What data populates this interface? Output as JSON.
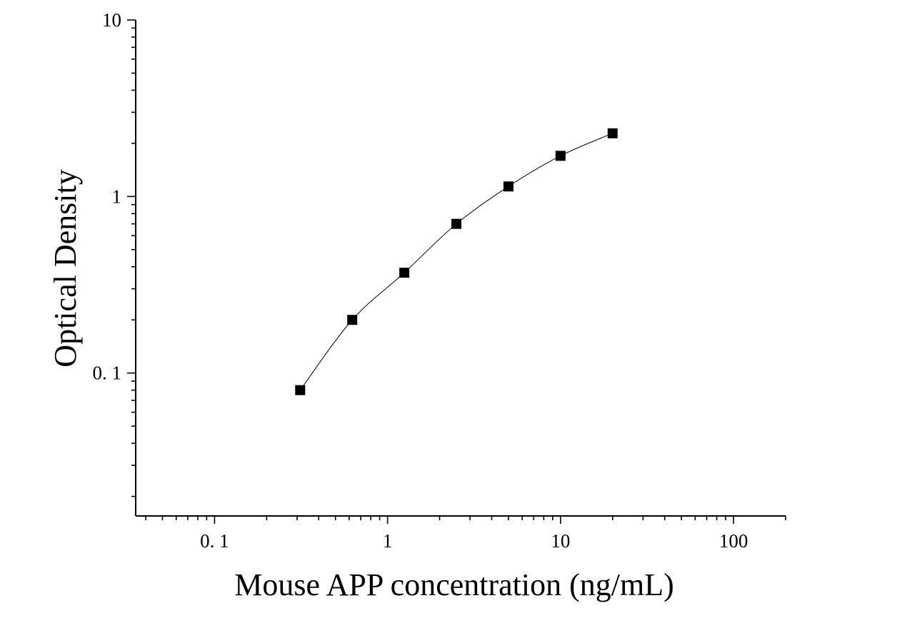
{
  "chart_data": {
    "type": "scatter",
    "xlabel": "Mouse APP concentration (ng/mL)",
    "ylabel": "Optical Density",
    "x_scale": "log",
    "y_scale": "log",
    "xlim": [
      0.035,
      200
    ],
    "ylim": [
      0.0155,
      10
    ],
    "x_ticks": [
      {
        "value": 0.1,
        "label": "0. 1"
      },
      {
        "value": 1,
        "label": "1"
      },
      {
        "value": 10,
        "label": "10"
      },
      {
        "value": 100,
        "label": "100"
      }
    ],
    "y_ticks": [
      {
        "value": 0.1,
        "label": "0. 1"
      },
      {
        "value": 1,
        "label": "1"
      },
      {
        "value": 10,
        "label": "10"
      }
    ],
    "grid": false,
    "legend": "none",
    "marker": "square",
    "color": "#000000",
    "series": [
      {
        "x": [
          0.3125,
          0.625,
          1.25,
          2.5,
          5,
          10,
          20
        ],
        "y": [
          0.08,
          0.2,
          0.37,
          0.7,
          1.14,
          1.7,
          2.28
        ]
      }
    ],
    "fit_curve": true
  }
}
